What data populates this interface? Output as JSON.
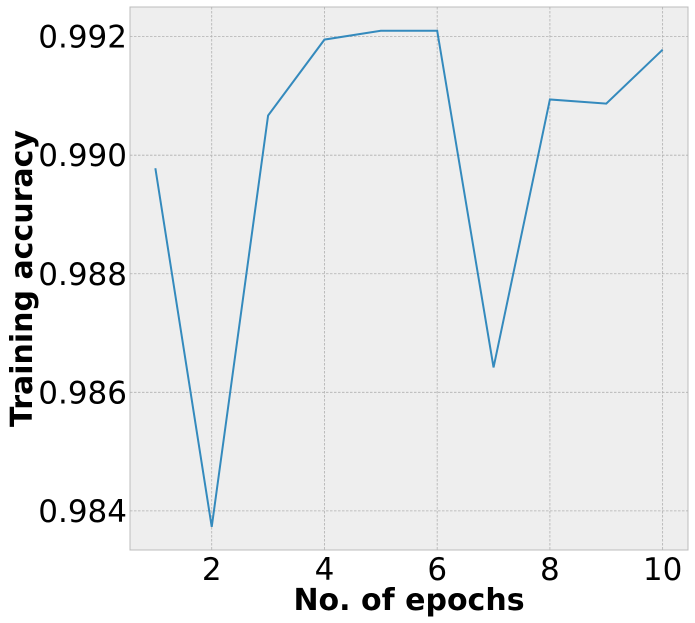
{
  "chart_data": {
    "type": "line",
    "xlabel": "No. of epochs",
    "ylabel": "Training accuracy",
    "xlim": [
      0.55,
      10.45
    ],
    "ylim": [
      0.98334,
      0.9925
    ],
    "xticks": [
      2,
      4,
      6,
      8,
      10
    ],
    "yticks": [
      0.984,
      0.986,
      0.988,
      0.99,
      0.992
    ],
    "xtick_labels": [
      "2",
      "4",
      "6",
      "8",
      "10"
    ],
    "ytick_labels": [
      "0.984",
      "0.986",
      "0.988",
      "0.990",
      "0.992"
    ],
    "grid": true,
    "background": "#eeeeee",
    "line_color": "#348abd",
    "series": [
      {
        "x": [
          1,
          2,
          3,
          4,
          5,
          6,
          7,
          8,
          9,
          10
        ],
        "y": [
          0.98978,
          0.98373,
          0.99067,
          0.99195,
          0.9921,
          0.9921,
          0.98642,
          0.99094,
          0.99087,
          0.99178
        ]
      }
    ]
  }
}
